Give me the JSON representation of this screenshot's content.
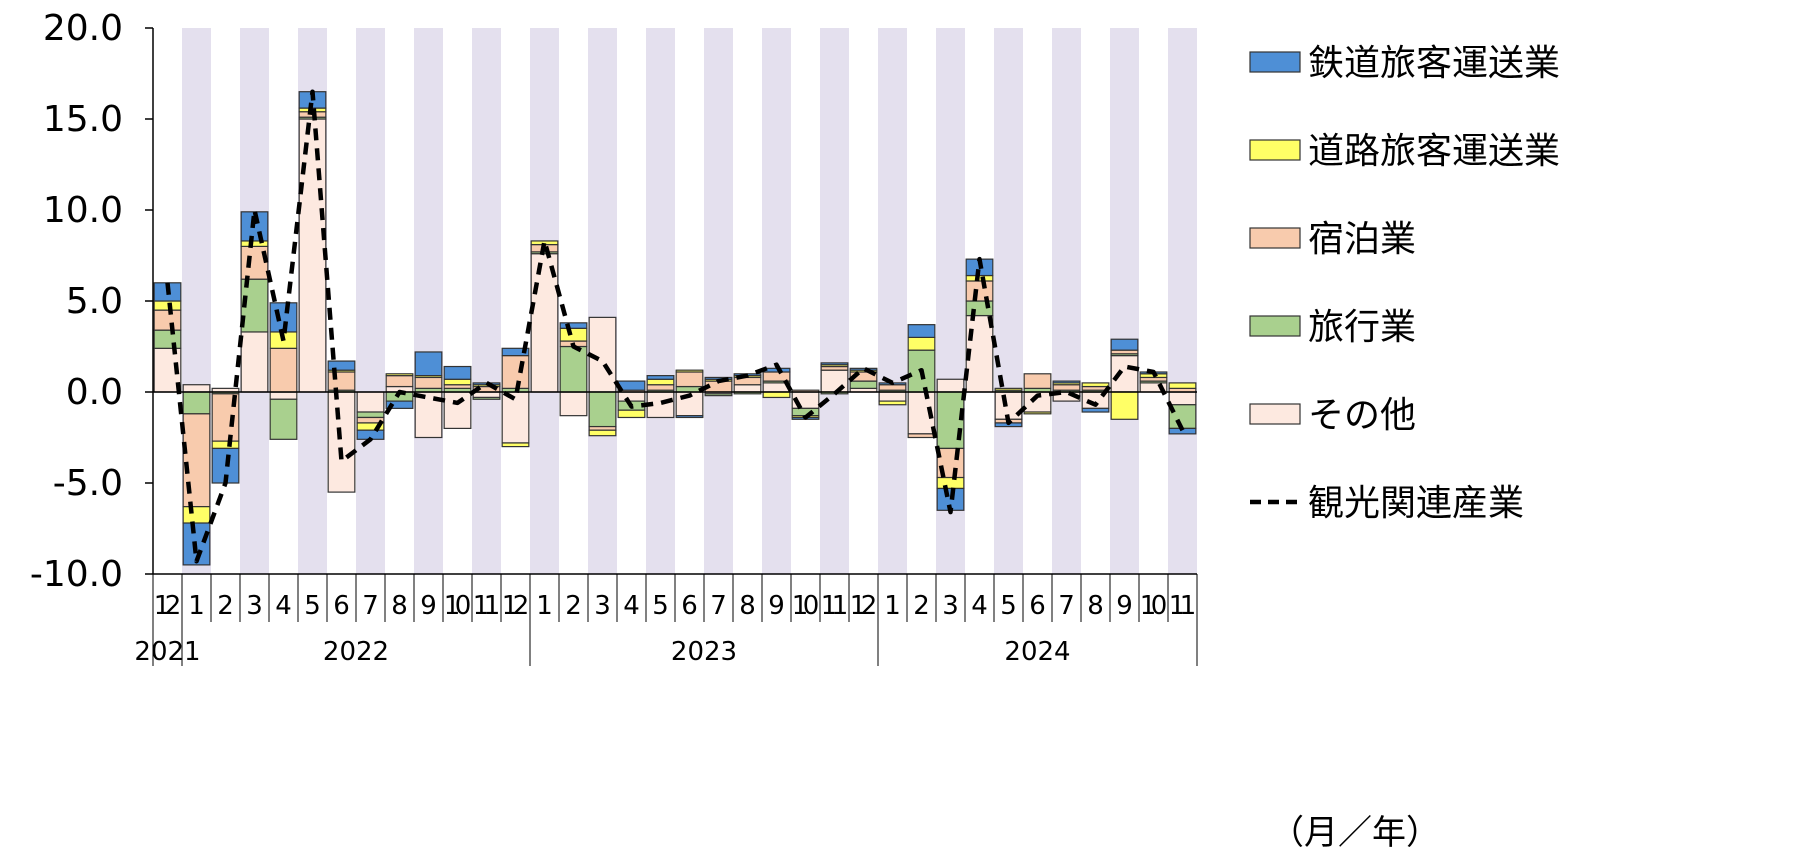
{
  "chart_data": {
    "type": "bar",
    "stacked": true,
    "x_unit_label": "（月／年）",
    "ylim": [
      -10,
      20
    ],
    "yticks": [
      "20.0",
      "15.0",
      "10.0",
      "5.0",
      "0.0",
      "-5.0",
      "-10.0"
    ],
    "ytick_values": [
      20,
      15,
      10,
      5,
      0,
      -5,
      -10
    ],
    "months": [
      "12",
      "1",
      "2",
      "3",
      "4",
      "5",
      "6",
      "7",
      "8",
      "9",
      "10",
      "11",
      "12",
      "1",
      "2",
      "3",
      "4",
      "5",
      "6",
      "7",
      "8",
      "9",
      "10",
      "11",
      "12",
      "1",
      "2",
      "3",
      "4",
      "5",
      "6",
      "7",
      "8",
      "9",
      "10",
      "11"
    ],
    "year_groups": [
      {
        "label": "2021",
        "start": 0,
        "count": 1
      },
      {
        "label": "2022",
        "start": 1,
        "count": 12
      },
      {
        "label": "2023",
        "start": 13,
        "count": 12
      },
      {
        "label": "2024",
        "start": 25,
        "count": 11
      }
    ],
    "series": [
      {
        "name": "その他",
        "color": "#fde9e0",
        "values": [
          2.4,
          0.4,
          0.2,
          3.3,
          -0.4,
          15.0,
          -5.5,
          -1.1,
          0.3,
          -2.5,
          -2.0,
          -0.3,
          -2.8,
          7.6,
          -1.3,
          4.1,
          -0.5,
          -1.4,
          -1.3,
          -0.1,
          0.4,
          0.5,
          -0.9,
          1.2,
          0.2,
          -0.5,
          -2.3,
          0.7,
          4.2,
          -1.5,
          -1.1,
          -0.5,
          -0.9,
          2.0,
          0.5,
          -0.7
        ]
      },
      {
        "name": "旅行業",
        "color": "#a9d08e",
        "values": [
          1.0,
          -1.2,
          -0.1,
          2.9,
          -2.2,
          0.1,
          0.1,
          -0.3,
          -0.5,
          0.2,
          0.2,
          -0.1,
          0.2,
          0.1,
          2.5,
          -1.9,
          -0.5,
          0.1,
          0.3,
          -0.1,
          -0.1,
          0.1,
          -0.4,
          -0.1,
          0.4,
          0.1,
          2.3,
          -3.1,
          0.8,
          0.1,
          0.2,
          0.1,
          0.1,
          0.1,
          0.1,
          -1.3
        ]
      },
      {
        "name": "宿泊業",
        "color": "#f8cbad",
        "values": [
          1.1,
          -5.1,
          -2.6,
          1.8,
          2.4,
          0.3,
          1.0,
          -0.3,
          0.6,
          0.6,
          0.2,
          0.3,
          1.8,
          0.4,
          0.3,
          -0.2,
          0.1,
          0.3,
          0.8,
          0.6,
          0.4,
          0.5,
          0.1,
          0.2,
          0.5,
          0.3,
          -0.2,
          -1.6,
          1.1,
          -0.2,
          0.8,
          0.3,
          0.2,
          0.2,
          0.2,
          0.2
        ]
      },
      {
        "name": "道路旅客運送業",
        "color": "#ffff66",
        "values": [
          0.5,
          -0.9,
          -0.4,
          0.3,
          0.9,
          0.2,
          0.1,
          -0.4,
          0.1,
          0.1,
          0.3,
          0.1,
          -0.2,
          0.2,
          0.7,
          -0.3,
          -0.4,
          0.3,
          0.1,
          0.1,
          0.1,
          -0.3,
          -0.1,
          0.1,
          0.1,
          -0.2,
          0.7,
          -0.6,
          0.3,
          0.1,
          -0.1,
          0.1,
          0.2,
          -1.5,
          0.2,
          0.3
        ]
      },
      {
        "name": "鉄道旅客運送業",
        "color": "#4e8fd6",
        "values": [
          1.0,
          -2.3,
          -1.9,
          1.6,
          1.6,
          0.9,
          0.5,
          -0.5,
          -0.4,
          1.3,
          0.7,
          0.1,
          0.4,
          0.0,
          0.3,
          0.0,
          0.5,
          0.2,
          -0.1,
          0.1,
          0.1,
          0.2,
          -0.1,
          0.1,
          0.1,
          0.1,
          0.7,
          -1.2,
          0.9,
          -0.2,
          0.0,
          0.1,
          -0.2,
          0.6,
          0.1,
          -0.3
        ]
      }
    ],
    "line_series": {
      "name": "観光関連産業",
      "color": "#000000",
      "values": [
        6.0,
        -9.3,
        -5.0,
        10.0,
        2.8,
        16.5,
        -3.8,
        -2.6,
        0.0,
        -0.3,
        -0.6,
        0.5,
        -0.4,
        8.3,
        2.5,
        1.7,
        -0.8,
        -0.6,
        -0.2,
        0.6,
        0.9,
        1.5,
        -1.4,
        -0.1,
        1.3,
        0.5,
        1.2,
        -6.6,
        7.3,
        -1.7,
        -0.2,
        0.0,
        -0.7,
        1.4,
        1.1,
        -2.1
      ]
    },
    "legend_order": [
      "鉄道旅客運送業",
      "道路旅客運送業",
      "宿泊業",
      "旅行業",
      "その他",
      "観光関連産業"
    ],
    "legend_position": "right",
    "background_stripes": true,
    "stripe_color": "#e4e0ee"
  }
}
